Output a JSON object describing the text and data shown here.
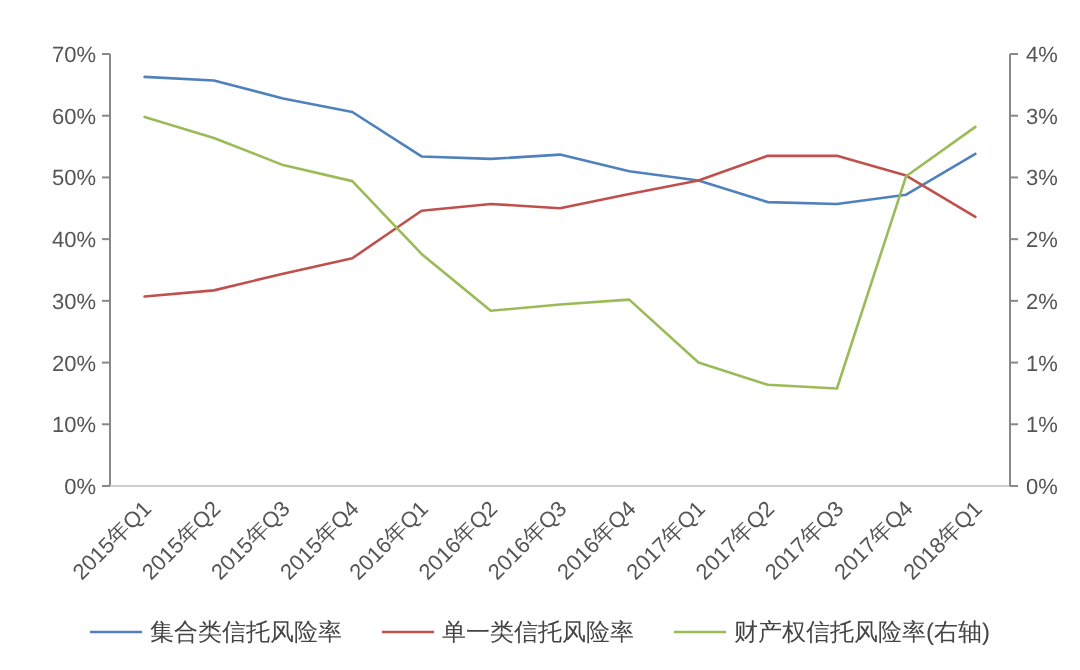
{
  "chart_data": {
    "type": "line",
    "categories": [
      "2015年Q1",
      "2015年Q2",
      "2015年Q3",
      "2015年Q4",
      "2016年Q1",
      "2016年Q2",
      "2016年Q3",
      "2016年Q4",
      "2017年Q1",
      "2017年Q2",
      "2017年Q3",
      "2017年Q4",
      "2018年Q1"
    ],
    "series": [
      {
        "name": "集合类信托风险率",
        "color": "#4f81bd",
        "values": [
          66.3,
          65.7,
          62.8,
          60.6,
          53.4,
          53.0,
          53.7,
          51.0,
          49.5,
          46.0,
          45.7,
          47.2,
          53.8
        ]
      },
      {
        "name": "单一类信托风险率",
        "color": "#c0504d",
        "values": [
          30.7,
          31.7,
          34.4,
          36.9,
          44.6,
          45.7,
          45.0,
          47.3,
          49.5,
          53.5,
          53.5,
          50.3,
          43.6
        ]
      },
      {
        "name": "财产权信托风险率(右轴)",
        "color": "#9bbb59",
        "axis": "y2",
        "values": [
          2.99,
          2.82,
          2.6,
          2.47,
          1.88,
          1.42,
          1.47,
          1.51,
          1.0,
          0.82,
          0.79,
          2.51,
          2.91
        ]
      }
    ],
    "ylim": [
      0,
      70
    ],
    "yticks": [
      {
        "value": 0,
        "label": "0%"
      },
      {
        "value": 10,
        "label": "10%"
      },
      {
        "value": 20,
        "label": "20%"
      },
      {
        "value": 30,
        "label": "30%"
      },
      {
        "value": 40,
        "label": "40%"
      },
      {
        "value": 50,
        "label": "50%"
      },
      {
        "value": 60,
        "label": "60%"
      },
      {
        "value": 70,
        "label": "70%"
      }
    ],
    "y2lim": [
      0,
      3.5
    ],
    "y2ticks": [
      {
        "value": 0,
        "label": "0%"
      },
      {
        "value": 0.5,
        "label": "1%"
      },
      {
        "value": 1,
        "label": "1%"
      },
      {
        "value": 1.5,
        "label": "2%"
      },
      {
        "value": 2,
        "label": "2%"
      },
      {
        "value": 2.5,
        "label": "3%"
      },
      {
        "value": 3,
        "label": "3%"
      },
      {
        "value": 3.5,
        "label": "4%"
      }
    ],
    "legend": "bottom"
  }
}
